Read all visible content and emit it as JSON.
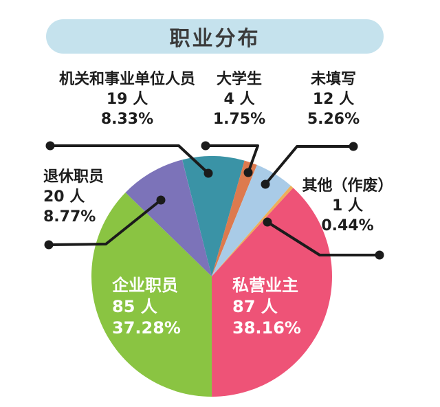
{
  "title": "职业分布",
  "chart_data": {
    "type": "pie",
    "title": "职业分布",
    "unit": "人",
    "legend": "none",
    "label_layout": "callouts-with-leader-lines",
    "slices": [
      {
        "label": "机关和事业单位人员",
        "value": 19,
        "count_text": "19 人",
        "pct": 8.33,
        "pct_text": "8.33%",
        "color": "#3a93a6"
      },
      {
        "label": "大学生",
        "value": 4,
        "count_text": "4 人",
        "pct": 1.75,
        "pct_text": "1.75%",
        "color": "#dd7a4e"
      },
      {
        "label": "未填写",
        "value": 12,
        "count_text": "12 人",
        "pct": 5.26,
        "pct_text": "5.26%",
        "color": "#a9cbe7"
      },
      {
        "label": "其他（作废）",
        "value": 1,
        "count_text": "1 人",
        "pct": 0.44,
        "pct_text": "0.44%",
        "color": "#edae5a"
      },
      {
        "label": "私营业主",
        "value": 87,
        "count_text": "87 人",
        "pct": 38.16,
        "pct_text": "38.16%",
        "color": "#ee5377"
      },
      {
        "label": "企业职员",
        "value": 85,
        "count_text": "85 人",
        "pct": 37.28,
        "pct_text": "37.28%",
        "color": "#8ac442"
      },
      {
        "label": "退休职员",
        "value": 20,
        "count_text": "20 人",
        "pct": 8.77,
        "pct_text": "8.77%",
        "color": "#7c73b9"
      }
    ],
    "colors": {
      "title_pill_bg": "#c5e2ed",
      "leader_line": "#1b1b1b",
      "inside_label_text": "#ffffff",
      "outside_label_text": "#1d1d1d"
    }
  }
}
